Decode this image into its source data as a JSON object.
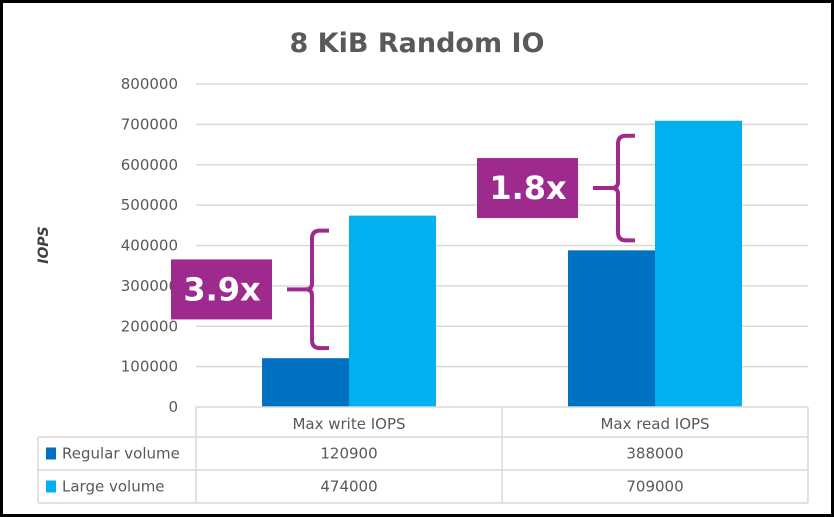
{
  "chart_data": {
    "type": "bar",
    "title": "8 KiB Random IO",
    "xlabel": "",
    "ylabel": "IOPS",
    "ylim": [
      0,
      800000
    ],
    "yticks": [
      "0",
      "100000",
      "200000",
      "300000",
      "400000",
      "500000",
      "600000",
      "700000",
      "800000"
    ],
    "categories": [
      "Max write IOPS",
      "Max read IOPS"
    ],
    "series": [
      {
        "name": "Regular volume",
        "color": "#0070C0",
        "values": [
          120900,
          388000
        ],
        "labels": [
          "120900",
          "388000"
        ]
      },
      {
        "name": "Large volume",
        "color": "#00B0F0",
        "values": [
          474000,
          709000
        ],
        "labels": [
          "474000",
          "709000"
        ]
      }
    ],
    "grid": true,
    "legend": "data-table-bottom",
    "annotations": [
      {
        "text": "3.9x",
        "category": 0,
        "from": 120900,
        "to": 474000,
        "color": "#9E2A8E"
      },
      {
        "text": "1.8x",
        "category": 1,
        "from": 388000,
        "to": 709000,
        "color": "#9E2A8E"
      }
    ]
  }
}
